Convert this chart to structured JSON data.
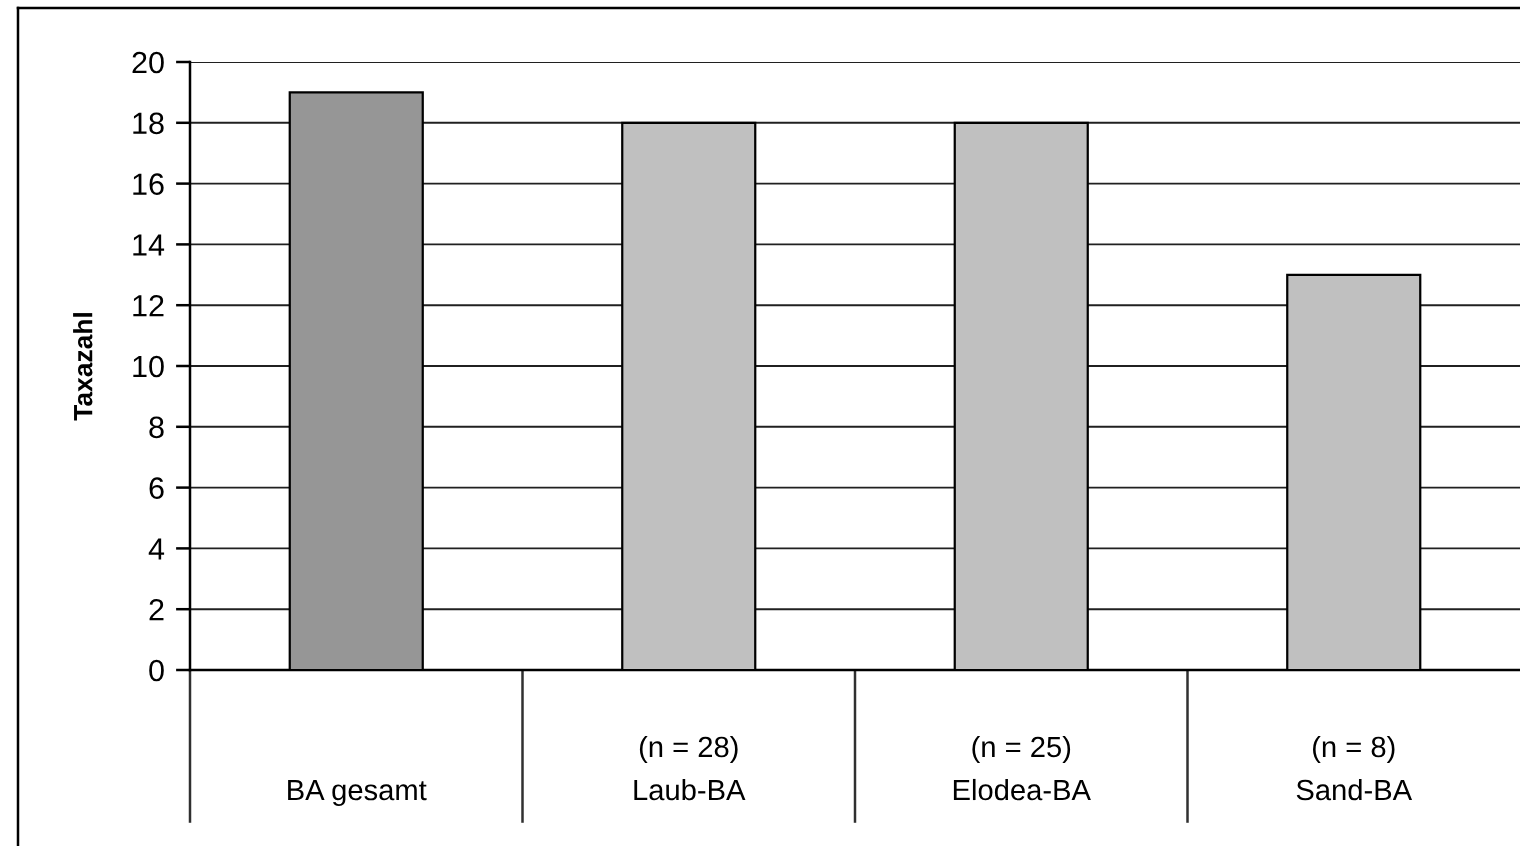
{
  "chart_data": {
    "type": "bar",
    "ylabel": "Taxazahl",
    "categories": [
      "BA gesamt",
      "(n = 28)\nLaub-BA",
      "(n = 25)\nElodea-BA",
      "(n = 8)\nSand-BA"
    ],
    "values": [
      19,
      18,
      18,
      13
    ],
    "colors": [
      "#969696",
      "#c0c0c0",
      "#c0c0c0",
      "#c0c0c0"
    ],
    "ylim": [
      0,
      20
    ],
    "yticks": [
      0,
      2,
      4,
      6,
      8,
      10,
      12,
      14,
      16,
      18,
      20
    ],
    "grid": "y"
  }
}
